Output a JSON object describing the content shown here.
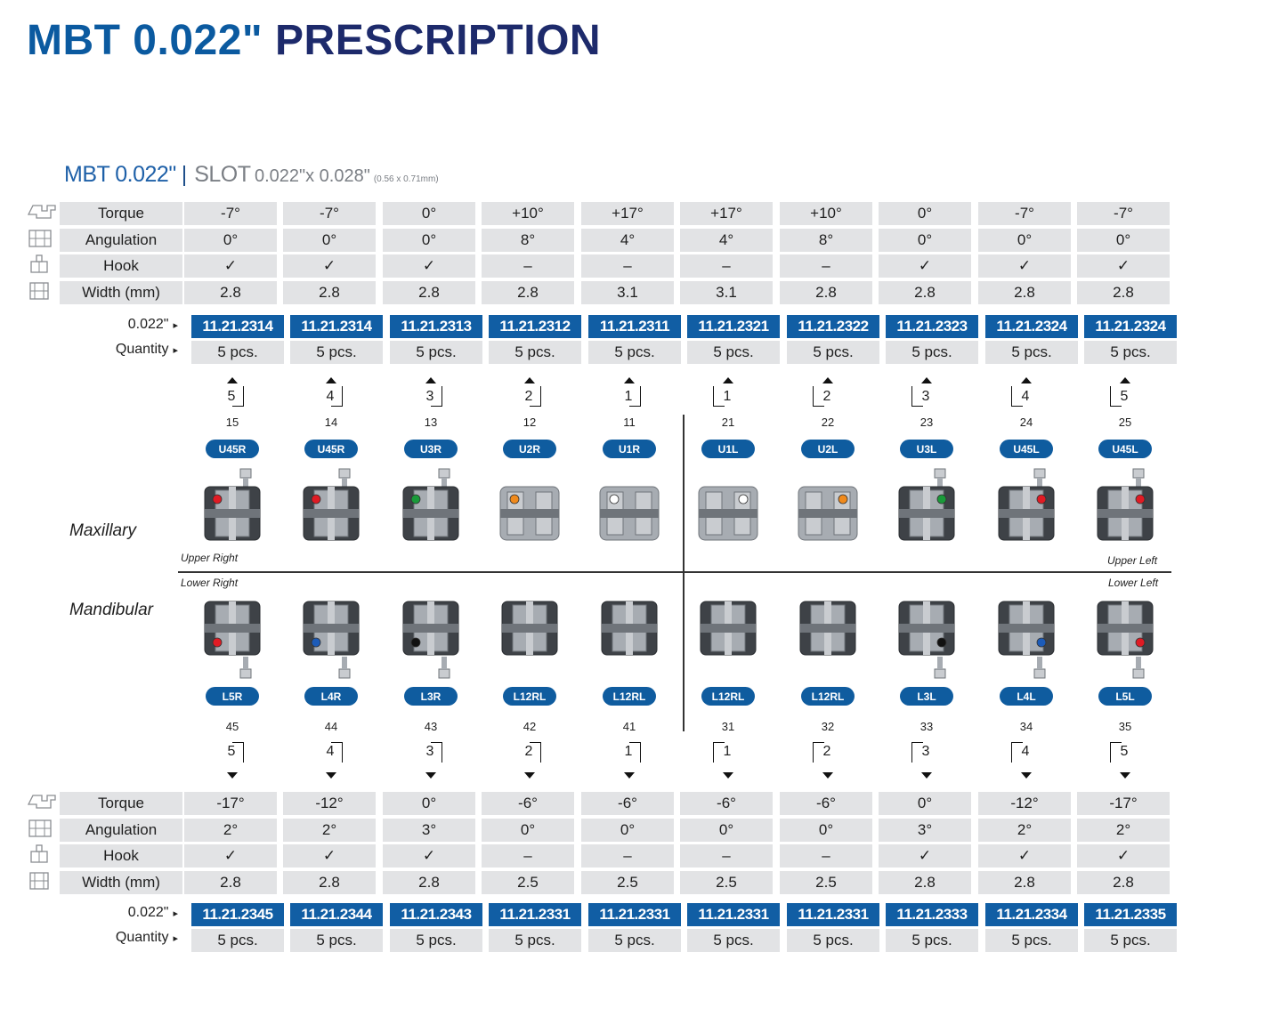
{
  "title": {
    "part1": "MBT 0.022\"",
    "part2": "PRESCRIPTION"
  },
  "subtitle": {
    "mbt": "MBT 0.022\"",
    "sep": "|",
    "slot_word": "SLOT",
    "slot_size": "0.022\"x 0.028\"",
    "slot_mm": "(0.56 x 0.71mm)"
  },
  "row_labels": {
    "torque": "Torque",
    "angulation": "Angulation",
    "hook": "Hook",
    "width": "Width (mm)",
    "slot": "0.022\"",
    "quantity": "Quantity",
    "triangle": "▸"
  },
  "upper": {
    "torque": [
      "-7°",
      "-7°",
      "0°",
      "+10°",
      "+17°",
      "+17°",
      "+10°",
      "0°",
      "-7°",
      "-7°"
    ],
    "angulation": [
      "0°",
      "0°",
      "0°",
      "8°",
      "4°",
      "4°",
      "8°",
      "0°",
      "0°",
      "0°"
    ],
    "hook": [
      "✓",
      "✓",
      "✓",
      "–",
      "–",
      "–",
      "–",
      "✓",
      "✓",
      "✓"
    ],
    "width": [
      "2.8",
      "2.8",
      "2.8",
      "2.8",
      "3.1",
      "3.1",
      "2.8",
      "2.8",
      "2.8",
      "2.8"
    ],
    "codes": [
      "11.21.2314",
      "11.21.2314",
      "11.21.2313",
      "11.21.2312",
      "11.21.2311",
      "11.21.2321",
      "11.21.2322",
      "11.21.2323",
      "11.21.2324",
      "11.21.2324"
    ],
    "quantity": [
      "5 pcs.",
      "5 pcs.",
      "5 pcs.",
      "5 pcs.",
      "5 pcs.",
      "5 pcs.",
      "5 pcs.",
      "5 pcs.",
      "5 pcs.",
      "5 pcs."
    ],
    "palmer": [
      "5",
      "4",
      "3",
      "2",
      "1",
      "1",
      "2",
      "3",
      "4",
      "5"
    ],
    "fdi": [
      "15",
      "14",
      "13",
      "12",
      "11",
      "21",
      "22",
      "23",
      "24",
      "25"
    ],
    "ids": [
      "U45R",
      "U45R",
      "U3R",
      "U2R",
      "U1R",
      "U1L",
      "U2L",
      "U3L",
      "U45L",
      "U45L"
    ],
    "dot_colors": [
      "#e01b24",
      "#e01b24",
      "#1a9a3a",
      "#f08a1c",
      "#ffffff",
      "#ffffff",
      "#f08a1c",
      "#1a9a3a",
      "#e01b24",
      "#e01b24"
    ]
  },
  "lower": {
    "torque": [
      "-17°",
      "-12°",
      "0°",
      "-6°",
      "-6°",
      "-6°",
      "-6°",
      "0°",
      "-12°",
      "-17°"
    ],
    "angulation": [
      "2°",
      "2°",
      "3°",
      "0°",
      "0°",
      "0°",
      "0°",
      "3°",
      "2°",
      "2°"
    ],
    "hook": [
      "✓",
      "✓",
      "✓",
      "–",
      "–",
      "–",
      "–",
      "✓",
      "✓",
      "✓"
    ],
    "width": [
      "2.8",
      "2.8",
      "2.8",
      "2.5",
      "2.5",
      "2.5",
      "2.5",
      "2.8",
      "2.8",
      "2.8"
    ],
    "codes": [
      "11.21.2345",
      "11.21.2344",
      "11.21.2343",
      "11.21.2331",
      "11.21.2331",
      "11.21.2331",
      "11.21.2331",
      "11.21.2333",
      "11.21.2334",
      "11.21.2335"
    ],
    "quantity": [
      "5 pcs.",
      "5 pcs.",
      "5 pcs.",
      "5 pcs.",
      "5 pcs.",
      "5 pcs.",
      "5 pcs.",
      "5 pcs.",
      "5 pcs.",
      "5 pcs."
    ],
    "palmer": [
      "5",
      "4",
      "3",
      "2",
      "1",
      "1",
      "2",
      "3",
      "4",
      "5"
    ],
    "fdi": [
      "45",
      "44",
      "43",
      "42",
      "41",
      "31",
      "32",
      "33",
      "34",
      "35"
    ],
    "ids": [
      "L5R",
      "L4R",
      "L3R",
      "L12RL",
      "L12RL",
      "L12RL",
      "L12RL",
      "L3L",
      "L4L",
      "L5L"
    ],
    "dot_colors": [
      "#e01b24",
      "#1c5bb8",
      "#111111",
      "",
      "",
      "",
      "",
      "#111111",
      "#1c5bb8",
      "#e01b24"
    ]
  },
  "regions": {
    "maxillary": "Maxillary",
    "mandibular": "Mandibular"
  },
  "quadrants": {
    "upper_right": "Upper Right",
    "upper_left": "Upper Left",
    "lower_right": "Lower Right",
    "lower_left": "Lower Left"
  },
  "icons": [
    "bracket-torque-icon",
    "bracket-angulation-icon",
    "bracket-hook-icon",
    "bracket-width-icon"
  ],
  "colors": {
    "title_blue": "#0b5aa0",
    "title_navy": "#1d2a6b",
    "code_blue": "#115ea4",
    "cell_gray": "#e2e3e5"
  }
}
